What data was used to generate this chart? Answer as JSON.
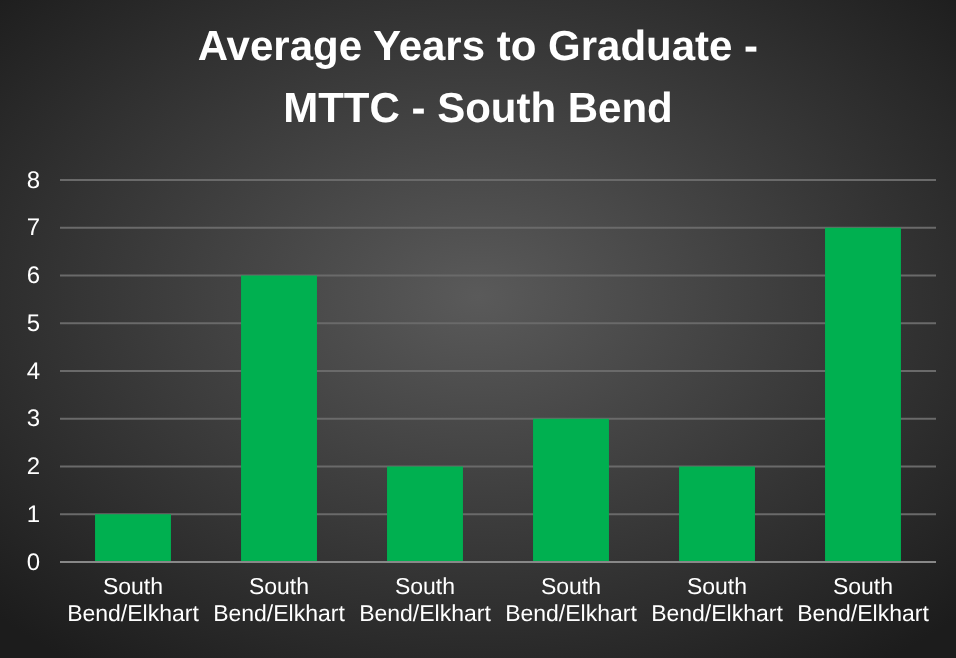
{
  "chart_data": {
    "type": "bar",
    "title": "Average Years to Graduate - MTTC - South Bend",
    "categories": [
      "South Bend/Elkhart",
      "South Bend/Elkhart",
      "South Bend/Elkhart",
      "South Bend/Elkhart",
      "South Bend/Elkhart",
      "South Bend/Elkhart"
    ],
    "values": [
      1,
      6,
      2,
      3,
      2,
      7
    ],
    "color": "#00b050",
    "ylim": [
      0,
      8
    ],
    "yticks": [
      0,
      1,
      2,
      3,
      4,
      5,
      6,
      7,
      8
    ],
    "grid": "y"
  }
}
